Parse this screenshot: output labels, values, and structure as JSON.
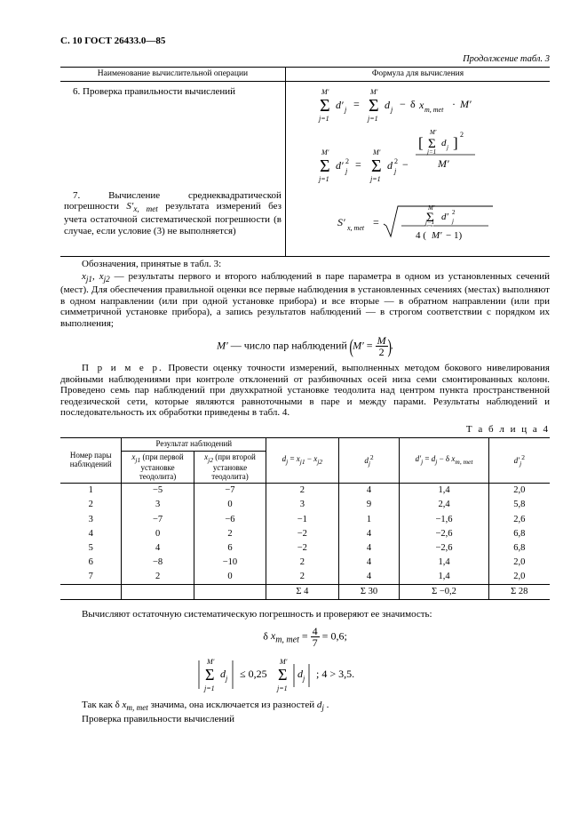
{
  "pageHeader": "С. 10 ГОСТ 26433.0—85",
  "continuationLabel": "Продолжение табл. 3",
  "table3": {
    "head": {
      "op": "Наименование вычислительной операции",
      "formula": "Формула для вычисления"
    },
    "row6": {
      "num": "6.",
      "title": "Проверка правильности вычислений"
    },
    "row7": {
      "num": "7.",
      "title": "Вычисление среднеквадратической погрешности S′x, met результата измерений без учета остаточной систематической погрешности (в случае, если условие (3) не выполняется)"
    }
  },
  "notations": {
    "intro": "Обозначения, принятые в табл. 3:",
    "p1": "x_j1, x_j2 — результаты первого и второго наблюдений в паре параметра в одном из установленных сечений (мест). Для обеспечения правильной оценки все первые наблюдения в установленных сечениях (местах) выполняют в одном направлении (или при одной установке прибора) и все вторые — в обратном направлении (или при симметричной установке прибора), а запись результатов наблюдений — в строгом соответствии с порядком их выполнения;",
    "mprime": "M′ — число пар наблюдений"
  },
  "example": {
    "label": "П р и м е р.",
    "text": " Провести оценку точности измерений, выполненных методом бокового нивелирования двойными наблюдениями при контроле отклонений от разбивочных осей низа семи смонтированных колонн. Проведено семь пар наблюдений при двухкратной установке теодолита над центром пункта пространственной геодезической сети, которые являются равноточными в паре и между парами. Результаты наблюдений и последовательность их обработки приведены в табл. 4."
  },
  "table4": {
    "label": "Т а б л и ц а 4",
    "head": {
      "c1": "Номер пары наблюдений",
      "c2group": "Результат наблюдений",
      "c2a": "x_j1 (при первой установке теодолита)",
      "c2b": "x_j2 (при второй установке теодолита)",
      "c3": "d_j = x_j1 − x_j2",
      "c4": "d_j^2",
      "c5": "d′_j = d_j − δ x_m, met",
      "c6": "d′_j^2"
    },
    "rows": [
      {
        "n": "1",
        "x1": "−5",
        "x2": "−7",
        "d": "2",
        "d2": "4",
        "dp": "1,4",
        "dp2": "2,0"
      },
      {
        "n": "2",
        "x1": "3",
        "x2": "0",
        "d": "3",
        "d2": "9",
        "dp": "2,4",
        "dp2": "5,8"
      },
      {
        "n": "3",
        "x1": "−7",
        "x2": "−6",
        "d": "−1",
        "d2": "1",
        "dp": "−1,6",
        "dp2": "2,6"
      },
      {
        "n": "4",
        "x1": "0",
        "x2": "2",
        "d": "−2",
        "d2": "4",
        "dp": "−2,6",
        "dp2": "6,8"
      },
      {
        "n": "5",
        "x1": "4",
        "x2": "6",
        "d": "−2",
        "d2": "4",
        "dp": "−2,6",
        "dp2": "6,8"
      },
      {
        "n": "6",
        "x1": "−8",
        "x2": "−10",
        "d": "2",
        "d2": "4",
        "dp": "1,4",
        "dp2": "2,0"
      },
      {
        "n": "7",
        "x1": "2",
        "x2": "0",
        "d": "2",
        "d2": "4",
        "dp": "1,4",
        "dp2": "2,0"
      }
    ],
    "sums": {
      "d": "Σ 4",
      "d2": "Σ 30",
      "dp": "Σ −0,2",
      "dp2": "Σ 28"
    }
  },
  "afterTable": {
    "p1": "Вычисляют остаточную систематическую погрешность и проверяют ее значимость:",
    "deltaVal": "0,6",
    "deltaFrac": {
      "num": "4",
      "den": "7"
    },
    "ineq": "4 > 3,5.",
    "p2": "Так как δ x_m, met значима, она исключается из разностей d_j .",
    "p3": "Проверка правильности вычислений"
  }
}
